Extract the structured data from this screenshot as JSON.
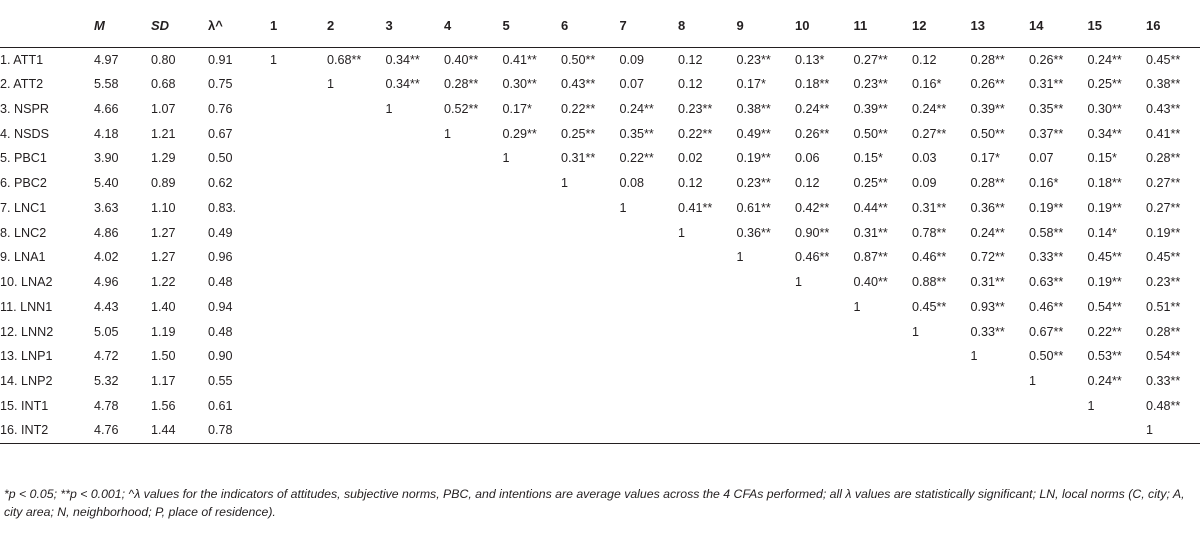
{
  "headers": [
    "",
    "M",
    "SD",
    "λ^",
    "1",
    "2",
    "3",
    "4",
    "5",
    "6",
    "7",
    "8",
    "9",
    "10",
    "11",
    "12",
    "13",
    "14",
    "15",
    "16"
  ],
  "rows": [
    {
      "label": "1. ATT1",
      "m": "4.97",
      "sd": "0.80",
      "lambda": "0.91",
      "cells": [
        "1",
        "0.68**",
        "0.34**",
        "0.40**",
        "0.41**",
        "0.50**",
        "0.09",
        "0.12",
        "0.23**",
        "0.13*",
        "0.27**",
        "0.12",
        "0.28**",
        "0.26**",
        "0.24**",
        "0.45**"
      ]
    },
    {
      "label": "2. ATT2",
      "m": "5.58",
      "sd": "0.68",
      "lambda": "0.75",
      "cells": [
        "",
        "1",
        "0.34**",
        "0.28**",
        "0.30**",
        "0.43**",
        "0.07",
        "0.12",
        "0.17*",
        "0.18**",
        "0.23**",
        "0.16*",
        "0.26**",
        "0.31**",
        "0.25**",
        "0.38**"
      ]
    },
    {
      "label": "3. NSPR",
      "m": "4.66",
      "sd": "1.07",
      "lambda": "0.76",
      "cells": [
        "",
        "",
        "1",
        "0.52**",
        "0.17*",
        "0.22**",
        "0.24**",
        "0.23**",
        "0.38**",
        "0.24**",
        "0.39**",
        "0.24**",
        "0.39**",
        "0.35**",
        "0.30**",
        "0.43**"
      ]
    },
    {
      "label": "4. NSDS",
      "m": "4.18",
      "sd": "1.21",
      "lambda": "0.67",
      "cells": [
        "",
        "",
        "",
        "1",
        "0.29**",
        "0.25**",
        "0.35**",
        "0.22**",
        "0.49**",
        "0.26**",
        "0.50**",
        "0.27**",
        "0.50**",
        "0.37**",
        "0.34**",
        "0.41**"
      ]
    },
    {
      "label": "5. PBC1",
      "m": "3.90",
      "sd": "1.29",
      "lambda": "0.50",
      "cells": [
        "",
        "",
        "",
        "",
        "1",
        "0.31**",
        "0.22**",
        "0.02",
        "0.19**",
        "0.06",
        "0.15*",
        "0.03",
        "0.17*",
        "0.07",
        "0.15*",
        "0.28**"
      ]
    },
    {
      "label": "6. PBC2",
      "m": "5.40",
      "sd": "0.89",
      "lambda": "0.62",
      "cells": [
        "",
        "",
        "",
        "",
        "",
        "1",
        "0.08",
        "0.12",
        "0.23**",
        "0.12",
        "0.25**",
        "0.09",
        "0.28**",
        "0.16*",
        "0.18**",
        "0.27**"
      ]
    },
    {
      "label": "7. LNC1",
      "m": "3.63",
      "sd": "1.10",
      "lambda": "0.83.",
      "cells": [
        "",
        "",
        "",
        "",
        "",
        "",
        "1",
        "0.41**",
        "0.61**",
        "0.42**",
        "0.44**",
        "0.31**",
        "0.36**",
        "0.19**",
        "0.19**",
        "0.27**"
      ]
    },
    {
      "label": "8. LNC2",
      "m": "4.86",
      "sd": "1.27",
      "lambda": "0.49",
      "cells": [
        "",
        "",
        "",
        "",
        "",
        "",
        "",
        "1",
        "0.36**",
        "0.90**",
        "0.31**",
        "0.78**",
        "0.24**",
        "0.58**",
        "0.14*",
        "0.19**"
      ]
    },
    {
      "label": "9. LNA1",
      "m": "4.02",
      "sd": "1.27",
      "lambda": "0.96",
      "cells": [
        "",
        "",
        "",
        "",
        "",
        "",
        "",
        "",
        "1",
        "0.46**",
        "0.87**",
        "0.46**",
        "0.72**",
        "0.33**",
        "0.45**",
        "0.45**"
      ]
    },
    {
      "label": "10. LNA2",
      "m": "4.96",
      "sd": "1.22",
      "lambda": "0.48",
      "cells": [
        "",
        "",
        "",
        "",
        "",
        "",
        "",
        "",
        "",
        "1",
        "0.40**",
        "0.88**",
        "0.31**",
        "0.63**",
        "0.19**",
        "0.23**"
      ]
    },
    {
      "label": "11. LNN1",
      "m": "4.43",
      "sd": "1.40",
      "lambda": "0.94",
      "cells": [
        "",
        "",
        "",
        "",
        "",
        "",
        "",
        "",
        "",
        "",
        "1",
        "0.45**",
        "0.93**",
        "0.46**",
        "0.54**",
        "0.51**"
      ]
    },
    {
      "label": "12. LNN2",
      "m": "5.05",
      "sd": "1.19",
      "lambda": "0.48",
      "cells": [
        "",
        "",
        "",
        "",
        "",
        "",
        "",
        "",
        "",
        "",
        "",
        "1",
        "0.33**",
        "0.67**",
        "0.22**",
        "0.28**"
      ]
    },
    {
      "label": "13. LNP1",
      "m": "4.72",
      "sd": "1.50",
      "lambda": "0.90",
      "cells": [
        "",
        "",
        "",
        "",
        "",
        "",
        "",
        "",
        "",
        "",
        "",
        "",
        "1",
        "0.50**",
        "0.53**",
        "0.54**"
      ]
    },
    {
      "label": "14. LNP2",
      "m": "5.32",
      "sd": "1.17",
      "lambda": "0.55",
      "cells": [
        "",
        "",
        "",
        "",
        "",
        "",
        "",
        "",
        "",
        "",
        "",
        "",
        "",
        "1",
        "0.24**",
        "0.33**"
      ]
    },
    {
      "label": "15. INT1",
      "m": "4.78",
      "sd": "1.56",
      "lambda": "0.61",
      "cells": [
        "",
        "",
        "",
        "",
        "",
        "",
        "",
        "",
        "",
        "",
        "",
        "",
        "",
        "",
        "1",
        "0.48**"
      ]
    },
    {
      "label": "16. INT2",
      "m": "4.76",
      "sd": "1.44",
      "lambda": "0.78",
      "cells": [
        "",
        "",
        "",
        "",
        "",
        "",
        "",
        "",
        "",
        "",
        "",
        "",
        "",
        "",
        "",
        "1"
      ]
    }
  ],
  "note": "*p < 0.05; **p < 0.001; ^λ values for the indicators of attitudes, subjective norms, PBC, and intentions are average values across the 4 CFAs performed; all λ values are statistically significant; LN, local norms (C, city; A, city area; N, neighborhood; P, place of residence)."
}
